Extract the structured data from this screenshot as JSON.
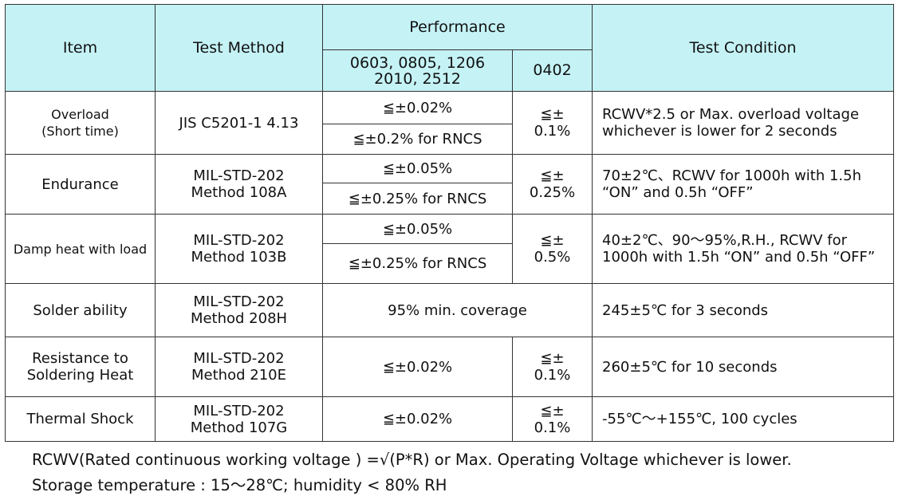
{
  "header": {
    "item": "Item",
    "test_method": "Test Method",
    "performance": "Performance",
    "perf_col_a": "0603, 0805, 1206\n2010, 2512",
    "perf_col_b": "0402",
    "test_condition": "Test Condition"
  },
  "rows": [
    {
      "item": "Overload\n(Short time)",
      "method": "JIS C5201-1 4.13",
      "perf_a1": "≦±0.02%",
      "perf_a2": "≦±0.2% for RNCS",
      "perf_b": "≦±\n0.1%",
      "condition": "RCWV*2.5 or Max. overload voltage\nwhichever is lower for 2 seconds"
    },
    {
      "item": "Endurance",
      "method": "MIL-STD-202\nMethod 108A",
      "perf_a1": "≦±0.05%",
      "perf_a2": "≦±0.25% for RNCS",
      "perf_b": "≦±\n0.25%",
      "condition": "70±2℃、RCWV for 1000h with 1.5h\n“ON” and 0.5h “OFF”"
    },
    {
      "item": "Damp heat with load",
      "method": "MIL-STD-202\nMethod 103B",
      "perf_a1": "≦±0.05%",
      "perf_a2": "≦±0.25% for RNCS",
      "perf_b": "≦±\n0.5%",
      "condition": "40±2℃、90～95%,R.H., RCWV for\n1000h with 1.5h “ON” and 0.5h “OFF”"
    },
    {
      "item": "Solder ability",
      "method": "MIL-STD-202\nMethod 208H",
      "perf_merged": "95% min. coverage",
      "condition": "245±5℃ for 3 seconds"
    },
    {
      "item": "Resistance to\nSoldering Heat",
      "method": "MIL-STD-202\nMethod 210E",
      "perf_a": "≦±0.02%",
      "perf_b": "≦±\n0.1%",
      "condition": "260±5℃ for 10 seconds"
    },
    {
      "item": "Thermal Shock",
      "method": "MIL-STD-202\nMethod 107G",
      "perf_a": "≦±0.02%",
      "perf_b": "≦±\n0.1%",
      "condition": "-55℃～+155℃, 100 cycles"
    }
  ],
  "notes": {
    "rcwv": "RCWV(Rated continuous working voltage ) =√(P*R) or Max. Operating Voltage whichever is lower.",
    "storage": "Storage temperature : 15～28℃; humidity < 80% RH"
  },
  "colors": {
    "header_bg": "#c5f2f5",
    "border": "#333333"
  }
}
